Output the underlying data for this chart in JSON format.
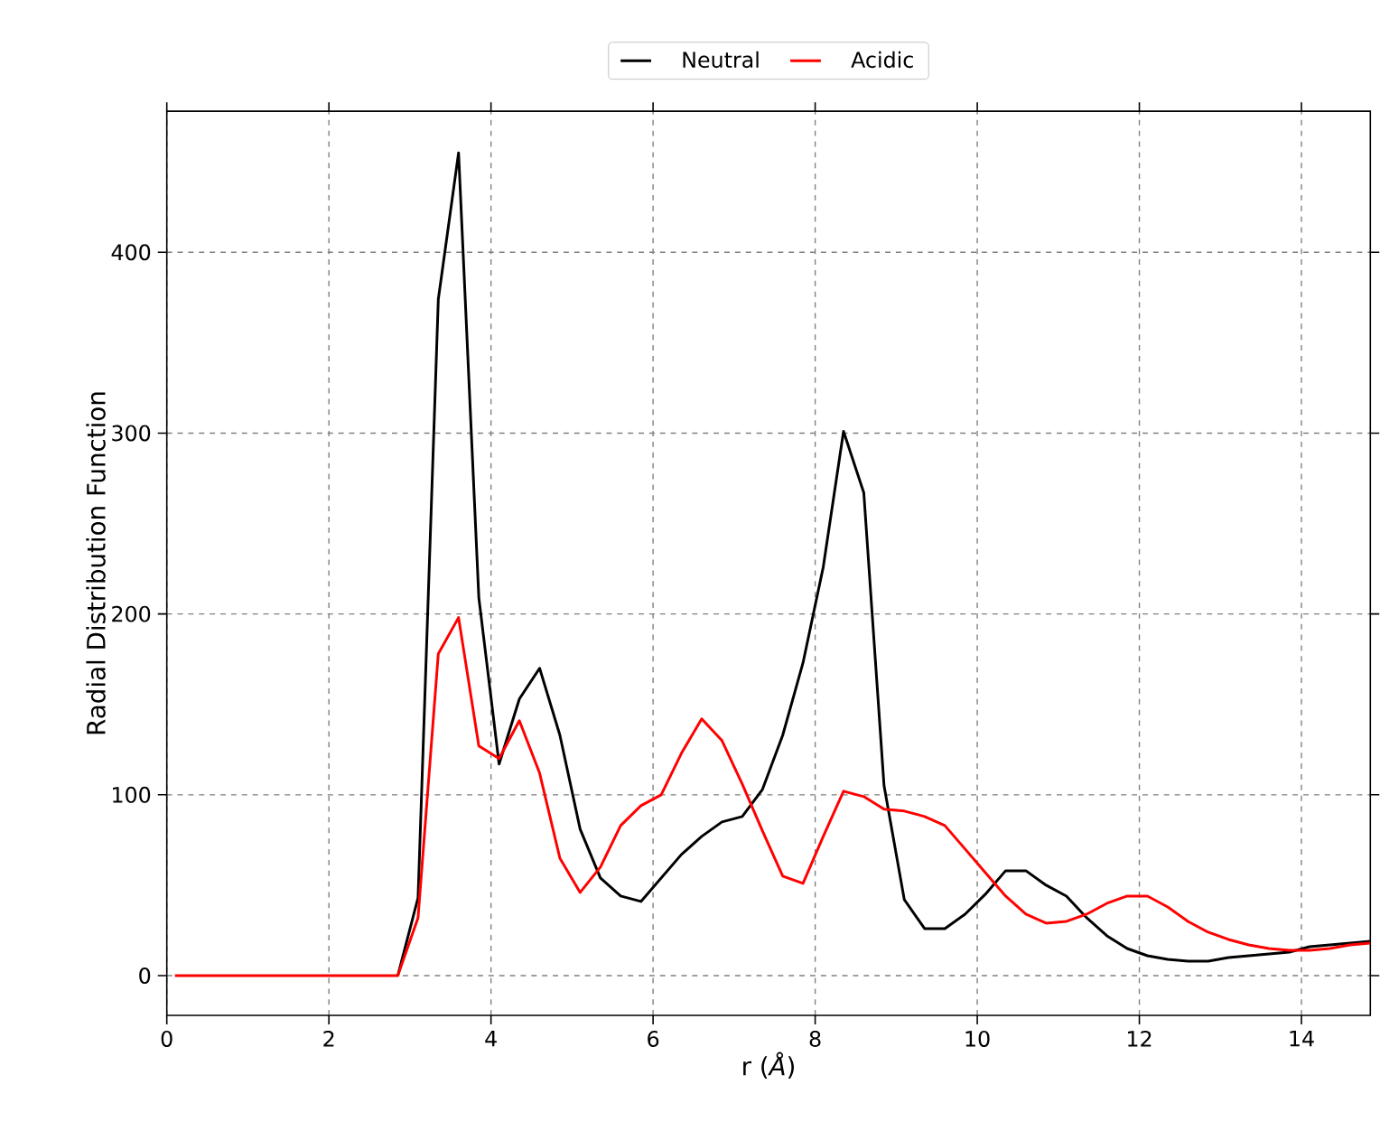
{
  "chart_data": {
    "type": "line",
    "xlabel": "r (*Å*)",
    "ylabel": "Radial Distribution Function",
    "x": [
      0.1,
      0.35,
      0.6,
      0.85,
      1.1,
      1.35,
      1.6,
      1.85,
      2.1,
      2.35,
      2.6,
      2.85,
      3.1,
      3.35,
      3.6,
      3.85,
      4.1,
      4.35,
      4.6,
      4.85,
      5.1,
      5.35,
      5.6,
      5.85,
      6.1,
      6.35,
      6.6,
      6.85,
      7.1,
      7.35,
      7.6,
      7.85,
      8.1,
      8.35,
      8.6,
      8.85,
      9.1,
      9.35,
      9.6,
      9.85,
      10.1,
      10.35,
      10.6,
      10.85,
      11.1,
      11.35,
      11.6,
      11.85,
      12.1,
      12.35,
      12.6,
      12.85,
      13.1,
      13.35,
      13.6,
      13.85,
      14.1,
      14.35,
      14.6,
      14.85
    ],
    "series": [
      {
        "name": "Neutral",
        "color": "#000000",
        "values": [
          null,
          null,
          null,
          null,
          null,
          null,
          null,
          null,
          null,
          null,
          null,
          0,
          43,
          374,
          455,
          209,
          117,
          153,
          170,
          133,
          81,
          54,
          44,
          41,
          54,
          67,
          77,
          85,
          88,
          103,
          133,
          173,
          226,
          301,
          267,
          105,
          42,
          26,
          26,
          34,
          45,
          58,
          58,
          50,
          44,
          32,
          22,
          15,
          11,
          9,
          8,
          8,
          10,
          11,
          12,
          13,
          16,
          17,
          18,
          19
        ]
      },
      {
        "name": "Acidic",
        "color": "#ff0000",
        "values": [
          0,
          0,
          0,
          0,
          0,
          0,
          0,
          0,
          0,
          0,
          0,
          0,
          32,
          178,
          198,
          127,
          120,
          141,
          112,
          65,
          46,
          60,
          83,
          94,
          100,
          123,
          142,
          130,
          106,
          80,
          55,
          51,
          77,
          102,
          99,
          92,
          91,
          88,
          83,
          70,
          57,
          44,
          34,
          29,
          30,
          34,
          40,
          44,
          44,
          38,
          30,
          24,
          20,
          17,
          15,
          14,
          14,
          15,
          17,
          18
        ]
      }
    ],
    "xlim": [
      0,
      14.85
    ],
    "ylim": [
      -22,
      478
    ],
    "xticks": [
      0,
      2,
      4,
      6,
      8,
      10,
      12,
      14
    ],
    "yticks": [
      0,
      100,
      200,
      300,
      400
    ],
    "grid": true,
    "legend": "top",
    "line_style": "solid"
  }
}
